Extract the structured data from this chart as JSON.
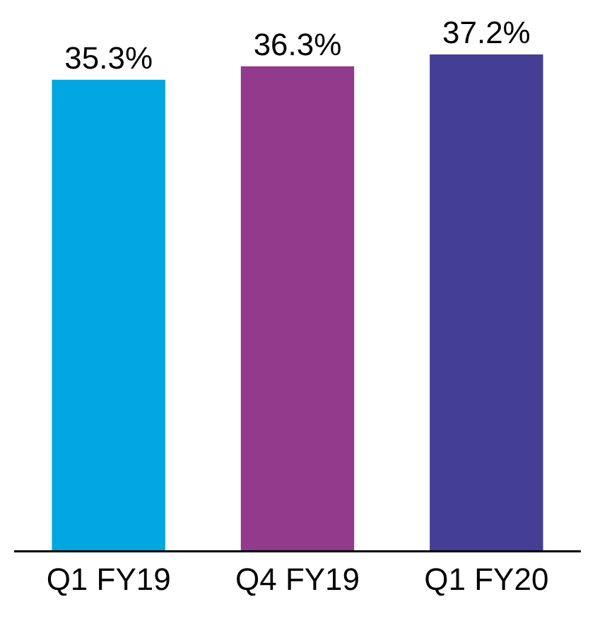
{
  "chart_data": {
    "type": "bar",
    "categories": [
      "Q1 FY19",
      "Q4 FY19",
      "Q1 FY20"
    ],
    "values": [
      35.3,
      36.3,
      37.2
    ],
    "value_labels": [
      "35.3%",
      "36.3%",
      "37.2%"
    ],
    "colors": [
      "#00a6e0",
      "#923a8c",
      "#443e94"
    ],
    "tick_labels": "x",
    "legend": false
  }
}
